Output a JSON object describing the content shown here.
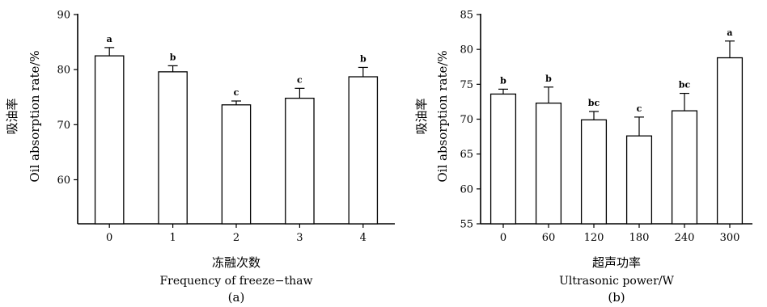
{
  "chart_data": [
    {
      "type": "bar",
      "panel_label": "(a)",
      "categories": [
        "0",
        "1",
        "2",
        "3",
        "4"
      ],
      "values": [
        82.5,
        79.6,
        73.6,
        74.8,
        78.7
      ],
      "error": [
        1.5,
        1.1,
        0.7,
        1.8,
        1.7
      ],
      "significance": [
        "a",
        "b",
        "c",
        "c",
        "b"
      ],
      "ylabel": "吸油率 Oil absorption rate/%",
      "ylabel_cn": "吸油率",
      "ylabel_en": "Oil absorption rate/%",
      "xlabel_cn": "冻融次数",
      "xlabel_en": "Frequency of freeze−thaw",
      "ylim": [
        52,
        90
      ],
      "yticks": [
        60,
        70,
        80,
        90
      ],
      "grid": false
    },
    {
      "type": "bar",
      "panel_label": "(b)",
      "categories": [
        "0",
        "60",
        "120",
        "180",
        "240",
        "300"
      ],
      "values": [
        73.6,
        72.3,
        69.9,
        67.6,
        71.2,
        78.8
      ],
      "error": [
        0.7,
        2.3,
        1.2,
        2.7,
        2.5,
        2.4
      ],
      "significance": [
        "b",
        "b",
        "bc",
        "c",
        "bc",
        "a"
      ],
      "ylabel": "吸油率 Oil absorption rate/%",
      "ylabel_cn": "吸油率",
      "ylabel_en": "Oil absorption rate/%",
      "xlabel_cn": "超声功率",
      "xlabel_en": "Ultrasonic power/W",
      "ylim": [
        55,
        85
      ],
      "yticks": [
        55,
        60,
        65,
        70,
        75,
        80,
        85
      ],
      "grid": false
    }
  ]
}
